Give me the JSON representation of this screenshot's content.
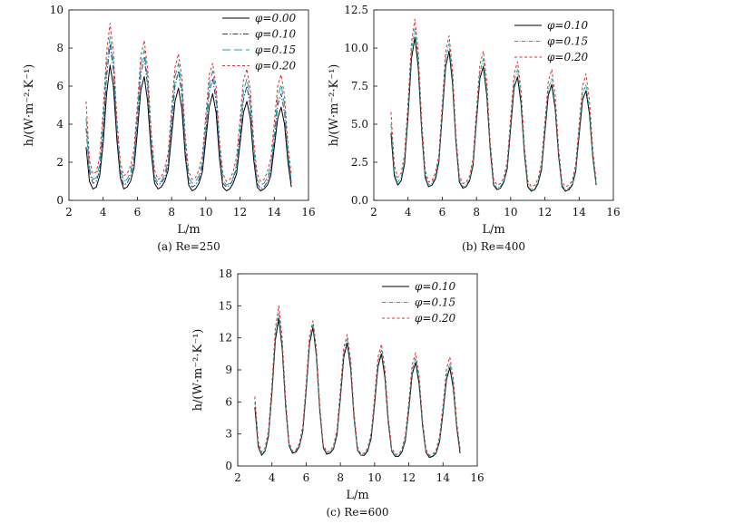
{
  "chart_data": [
    {
      "type": "line",
      "caption": "(a) Re=250",
      "xlabel": "L/m",
      "ylabel": "h/(W·m⁻²·K⁻¹)",
      "xlim": [
        2,
        16
      ],
      "ylim": [
        0,
        10
      ],
      "xticks": [
        2,
        4,
        6,
        8,
        10,
        12,
        14,
        16
      ],
      "yticks": [
        0,
        2,
        4,
        6,
        8,
        10
      ],
      "yticklabels": [
        "0",
        "2",
        "4",
        "6",
        "8",
        "10"
      ],
      "legend": "top-right",
      "grid": false,
      "x": [
        3.0,
        3.2,
        3.4,
        3.6,
        3.8,
        4.0,
        4.2,
        4.4,
        4.6,
        4.8,
        5.0,
        5.2,
        5.4,
        5.6,
        5.8,
        6.0,
        6.2,
        6.4,
        6.6,
        6.8,
        7.0,
        7.2,
        7.4,
        7.6,
        7.8,
        8.0,
        8.2,
        8.4,
        8.6,
        8.8,
        9.0,
        9.2,
        9.4,
        9.6,
        9.8,
        10.0,
        10.2,
        10.4,
        10.6,
        10.8,
        11.0,
        11.2,
        11.4,
        11.6,
        11.8,
        12.0,
        12.2,
        12.4,
        12.6,
        12.8,
        13.0,
        13.2,
        13.4,
        13.6,
        13.8,
        14.0,
        14.2,
        14.4,
        14.6,
        14.8,
        15.0
      ],
      "series": [
        {
          "name": "φ=0.00",
          "color": "#000000",
          "dash": "",
          "values": [
            2.8,
            1.0,
            0.6,
            0.7,
            1.3,
            3.0,
            5.6,
            7.1,
            6.0,
            3.2,
            1.2,
            0.6,
            0.7,
            1.0,
            1.7,
            3.6,
            5.8,
            6.5,
            5.2,
            2.6,
            0.9,
            0.6,
            0.7,
            1.0,
            1.6,
            3.4,
            5.2,
            5.9,
            4.8,
            2.3,
            0.8,
            0.5,
            0.6,
            0.9,
            1.5,
            3.2,
            4.9,
            5.6,
            4.6,
            2.2,
            0.7,
            0.5,
            0.6,
            0.9,
            1.4,
            3.0,
            4.6,
            5.2,
            4.3,
            2.1,
            0.7,
            0.5,
            0.6,
            0.8,
            1.3,
            2.8,
            4.3,
            4.9,
            4.0,
            2.0,
            0.7
          ]
        },
        {
          "name": "φ=0.10",
          "color": "#3a3a8c",
          "dash": "6 2 1.5 2",
          "values": [
            3.8,
            1.5,
            0.9,
            1.0,
            1.6,
            3.7,
            6.5,
            8.2,
            6.8,
            3.6,
            1.5,
            0.8,
            0.9,
            1.3,
            2.0,
            4.1,
            6.6,
            7.5,
            6.0,
            3.0,
            1.1,
            0.8,
            0.9,
            1.2,
            1.9,
            3.9,
            6.0,
            6.8,
            5.5,
            2.7,
            1.0,
            0.7,
            0.8,
            1.1,
            1.8,
            3.7,
            5.7,
            6.4,
            5.2,
            2.6,
            0.9,
            0.7,
            0.8,
            1.1,
            1.7,
            3.4,
            5.3,
            6.0,
            4.9,
            2.4,
            0.9,
            0.6,
            0.7,
            1.0,
            1.6,
            3.2,
            5.0,
            5.6,
            4.6,
            2.3,
            0.9
          ]
        },
        {
          "name": "φ=0.15",
          "color": "#1aa6a0",
          "dash": "9 4",
          "values": [
            4.3,
            1.7,
            1.1,
            1.2,
            1.9,
            4.1,
            7.1,
            8.6,
            7.2,
            3.9,
            1.7,
            1.0,
            1.1,
            1.5,
            2.3,
            4.5,
            7.1,
            7.9,
            6.4,
            3.3,
            1.3,
            0.9,
            1.0,
            1.4,
            2.1,
            4.3,
            6.5,
            7.2,
            5.9,
            3.0,
            1.2,
            0.9,
            1.0,
            1.3,
            2.0,
            4.0,
            6.1,
            6.8,
            5.6,
            2.8,
            1.1,
            0.8,
            0.9,
            1.2,
            1.9,
            3.7,
            5.7,
            6.4,
            5.3,
            2.7,
            1.1,
            0.8,
            0.9,
            1.2,
            1.8,
            3.5,
            5.4,
            6.1,
            5.0,
            2.5,
            1.0
          ]
        },
        {
          "name": "φ=0.20",
          "color": "#d9302c",
          "dash": "3 2.5",
          "values": [
            5.2,
            2.1,
            1.4,
            1.5,
            2.3,
            4.7,
            7.8,
            9.3,
            7.8,
            4.3,
            2.0,
            1.3,
            1.4,
            1.8,
            2.7,
            5.0,
            7.6,
            8.4,
            6.9,
            3.7,
            1.6,
            1.1,
            1.2,
            1.7,
            2.5,
            4.8,
            7.0,
            7.7,
            6.4,
            3.4,
            1.5,
            1.1,
            1.2,
            1.6,
            2.4,
            4.5,
            6.6,
            7.2,
            6.0,
            3.2,
            1.4,
            1.0,
            1.1,
            1.5,
            2.3,
            4.3,
            6.3,
            6.9,
            5.8,
            3.1,
            1.4,
            1.0,
            1.1,
            1.5,
            2.2,
            4.1,
            6.0,
            6.6,
            5.5,
            2.9,
            1.3
          ]
        }
      ]
    },
    {
      "type": "line",
      "caption": "(b) Re=400",
      "xlabel": "L/m",
      "ylabel": "h/(W·m⁻²·K⁻¹)",
      "xlim": [
        2,
        16
      ],
      "ylim": [
        0,
        12.5
      ],
      "xticks": [
        2,
        4,
        6,
        8,
        10,
        12,
        14,
        16
      ],
      "yticks": [
        0,
        2.5,
        5,
        7.5,
        10,
        12.5
      ],
      "yticklabels": [
        "0.0",
        "2.5",
        "5.0",
        "7.5",
        "10.0",
        "12.5"
      ],
      "legend": "top-right",
      "grid": false,
      "x": [
        3.0,
        3.2,
        3.4,
        3.6,
        3.8,
        4.0,
        4.2,
        4.4,
        4.6,
        4.8,
        5.0,
        5.2,
        5.4,
        5.6,
        5.8,
        6.0,
        6.2,
        6.4,
        6.6,
        6.8,
        7.0,
        7.2,
        7.4,
        7.6,
        7.8,
        8.0,
        8.2,
        8.4,
        8.6,
        8.8,
        9.0,
        9.2,
        9.4,
        9.6,
        9.8,
        10.0,
        10.2,
        10.4,
        10.6,
        10.8,
        11.0,
        11.2,
        11.4,
        11.6,
        11.8,
        12.0,
        12.2,
        12.4,
        12.6,
        12.8,
        13.0,
        13.2,
        13.4,
        13.6,
        13.8,
        14.0,
        14.2,
        14.4,
        14.6,
        14.8,
        15.0
      ],
      "series": [
        {
          "name": "φ=0.10",
          "color": "#000000",
          "dash": "",
          "values": [
            4.4,
            1.6,
            1.0,
            1.3,
            2.4,
            5.5,
            9.3,
            10.7,
            8.7,
            4.5,
            1.5,
            0.9,
            1.0,
            1.4,
            2.5,
            5.6,
            8.8,
            9.8,
            7.7,
            3.8,
            1.2,
            0.8,
            0.9,
            1.3,
            2.3,
            5.2,
            8.0,
            8.8,
            6.9,
            3.4,
            1.0,
            0.7,
            0.8,
            1.2,
            2.1,
            4.8,
            7.4,
            8.1,
            6.4,
            3.1,
            0.9,
            0.6,
            0.7,
            1.1,
            2.0,
            4.5,
            6.9,
            7.6,
            6.0,
            2.9,
            0.9,
            0.6,
            0.7,
            1.0,
            1.9,
            4.3,
            6.6,
            7.2,
            5.7,
            2.8,
            1.0
          ]
        },
        {
          "name": "φ=0.15",
          "color": "#1aa6a0",
          "dash": "4 1.5 1 1.5",
          "values": [
            5.0,
            1.9,
            1.2,
            1.5,
            2.7,
            5.9,
            9.8,
            11.3,
            9.2,
            4.8,
            1.7,
            1.0,
            1.1,
            1.6,
            2.7,
            5.9,
            9.3,
            10.3,
            8.1,
            4.0,
            1.4,
            0.9,
            1.0,
            1.4,
            2.5,
            5.5,
            8.4,
            9.3,
            7.3,
            3.6,
            1.2,
            0.8,
            0.9,
            1.3,
            2.3,
            5.1,
            7.8,
            8.6,
            6.8,
            3.3,
            1.1,
            0.7,
            0.8,
            1.2,
            2.2,
            4.8,
            7.3,
            8.0,
            6.3,
            3.1,
            1.0,
            0.7,
            0.8,
            1.1,
            2.1,
            4.6,
            7.0,
            7.6,
            6.0,
            3.0,
            1.1
          ]
        },
        {
          "name": "φ=0.20",
          "color": "#d9302c",
          "dash": "3 2.5",
          "values": [
            5.8,
            2.3,
            1.5,
            1.8,
            3.0,
            6.4,
            10.4,
            11.9,
            9.7,
            5.2,
            2.0,
            1.2,
            1.3,
            1.8,
            3.0,
            6.3,
            9.8,
            10.8,
            8.6,
            4.3,
            1.6,
            1.1,
            1.2,
            1.6,
            2.8,
            5.9,
            8.9,
            9.8,
            7.8,
            3.9,
            1.4,
            1.0,
            1.1,
            1.5,
            2.6,
            5.5,
            8.3,
            9.1,
            7.3,
            3.6,
            1.3,
            0.9,
            1.0,
            1.4,
            2.5,
            5.2,
            7.8,
            8.6,
            6.9,
            3.4,
            1.2,
            0.9,
            1.0,
            1.3,
            2.4,
            5.0,
            7.5,
            8.3,
            6.6,
            3.3,
            1.3
          ]
        }
      ]
    },
    {
      "type": "line",
      "caption": "(c) Re=600",
      "xlabel": "L/m",
      "ylabel": "h/(W·m⁻²·K⁻¹)",
      "xlim": [
        2,
        16
      ],
      "ylim": [
        0,
        18
      ],
      "xticks": [
        2,
        4,
        6,
        8,
        10,
        12,
        14,
        16
      ],
      "yticks": [
        0,
        3,
        6,
        9,
        12,
        15,
        18
      ],
      "yticklabels": [
        "0",
        "3",
        "6",
        "9",
        "12",
        "15",
        "18"
      ],
      "legend": "top-right",
      "grid": false,
      "x": [
        3.0,
        3.2,
        3.4,
        3.6,
        3.8,
        4.0,
        4.2,
        4.4,
        4.6,
        4.8,
        5.0,
        5.2,
        5.4,
        5.6,
        5.8,
        6.0,
        6.2,
        6.4,
        6.6,
        6.8,
        7.0,
        7.2,
        7.4,
        7.6,
        7.8,
        8.0,
        8.2,
        8.4,
        8.6,
        8.8,
        9.0,
        9.2,
        9.4,
        9.6,
        9.8,
        10.0,
        10.2,
        10.4,
        10.6,
        10.8,
        11.0,
        11.2,
        11.4,
        11.6,
        11.8,
        12.0,
        12.2,
        12.4,
        12.6,
        12.8,
        13.0,
        13.2,
        13.4,
        13.6,
        13.8,
        14.0,
        14.2,
        14.4,
        14.6,
        14.8,
        15.0
      ],
      "series": [
        {
          "name": "φ=0.10",
          "color": "#000000",
          "dash": "",
          "values": [
            5.5,
            1.8,
            1.0,
            1.4,
            2.8,
            6.8,
            11.8,
            13.8,
            11.0,
            5.6,
            1.9,
            1.2,
            1.3,
            1.8,
            3.2,
            7.0,
            11.5,
            13.0,
            10.3,
            5.1,
            1.7,
            1.1,
            1.2,
            1.6,
            2.9,
            6.3,
            10.2,
            11.5,
            9.1,
            4.5,
            1.5,
            1.0,
            1.0,
            1.4,
            2.6,
            5.8,
            9.3,
            10.5,
            8.3,
            4.1,
            1.4,
            0.9,
            0.9,
            1.3,
            2.4,
            5.3,
            8.6,
            9.7,
            7.7,
            3.8,
            1.3,
            0.8,
            0.9,
            1.2,
            2.3,
            5.0,
            8.1,
            9.2,
            7.3,
            3.6,
            1.2
          ]
        },
        {
          "name": "φ=0.15",
          "color": "#1aa6a0",
          "dash": "4 1.5 1 1.5",
          "values": [
            6.0,
            2.0,
            1.1,
            1.5,
            3.0,
            7.2,
            12.3,
            14.3,
            11.4,
            5.9,
            2.0,
            1.3,
            1.4,
            1.9,
            3.4,
            7.3,
            11.8,
            13.3,
            10.6,
            5.3,
            1.8,
            1.2,
            1.3,
            1.7,
            3.1,
            6.6,
            10.6,
            11.9,
            9.5,
            4.7,
            1.6,
            1.0,
            1.1,
            1.5,
            2.8,
            6.1,
            9.7,
            10.9,
            8.7,
            4.3,
            1.5,
            1.0,
            1.0,
            1.4,
            2.6,
            5.6,
            9.0,
            10.1,
            8.1,
            4.0,
            1.4,
            0.9,
            1.0,
            1.3,
            2.5,
            5.3,
            8.5,
            9.6,
            7.7,
            3.8,
            1.4
          ]
        },
        {
          "name": "φ=0.20",
          "color": "#d9302c",
          "dash": "3 2.5",
          "values": [
            6.5,
            2.3,
            1.3,
            1.7,
            3.3,
            7.6,
            12.9,
            15.0,
            12.0,
            6.3,
            2.2,
            1.4,
            1.5,
            2.1,
            3.7,
            7.7,
            12.2,
            13.6,
            11.0,
            5.6,
            2.0,
            1.3,
            1.4,
            1.9,
            3.4,
            7.1,
            11.1,
            12.3,
            9.9,
            5.0,
            1.8,
            1.1,
            1.2,
            1.7,
            3.1,
            6.5,
            10.2,
            11.4,
            9.1,
            4.6,
            1.7,
            1.1,
            1.1,
            1.6,
            2.9,
            6.0,
            9.5,
            10.6,
            8.5,
            4.3,
            1.6,
            1.0,
            1.1,
            1.5,
            2.8,
            5.7,
            9.1,
            10.2,
            8.2,
            4.1,
            1.6
          ]
        }
      ]
    }
  ]
}
